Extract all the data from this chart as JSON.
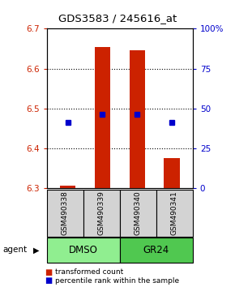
{
  "title": "GDS3583 / 245616_at",
  "samples": [
    "GSM490338",
    "GSM490339",
    "GSM490340",
    "GSM490341"
  ],
  "groups": [
    {
      "name": "DMSO",
      "color": "#90EE90",
      "samples": [
        0,
        1
      ]
    },
    {
      "name": "GR24",
      "color": "#50C850",
      "samples": [
        2,
        3
      ]
    }
  ],
  "bar_bottom": 6.3,
  "bar_values": [
    6.305,
    6.655,
    6.645,
    6.375
  ],
  "percentile_values": [
    6.465,
    6.485,
    6.485,
    6.465
  ],
  "ylim_left": [
    6.3,
    6.7
  ],
  "ylim_right": [
    0,
    100
  ],
  "yticks_left": [
    6.3,
    6.4,
    6.5,
    6.6,
    6.7
  ],
  "yticks_right": [
    0,
    25,
    50,
    75,
    100
  ],
  "yticklabels_right": [
    "0",
    "25",
    "50",
    "75",
    "100%"
  ],
  "bar_color": "#CC2200",
  "dot_color": "#0000CC",
  "agent_label": "agent",
  "legend_items": [
    {
      "color": "#CC2200",
      "label": "transformed count"
    },
    {
      "color": "#0000CC",
      "label": "percentile rank within the sample"
    }
  ]
}
